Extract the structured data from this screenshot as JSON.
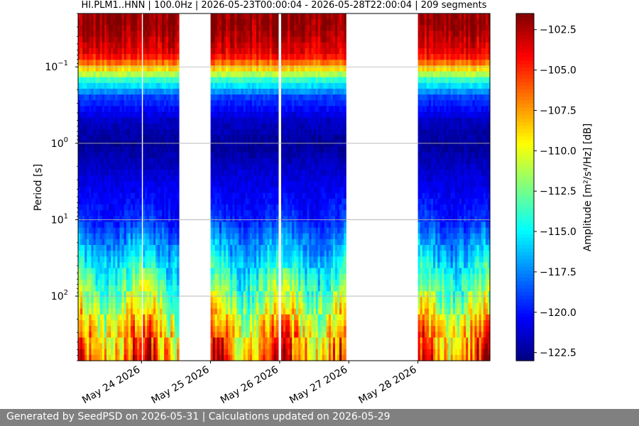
{
  "chart_data": {
    "type": "heatmap",
    "title": "HI.PLM1..HNN | 100.0Hz | 2026-05-23T00:00:04 - 2026-05-28T22:00:04 | 209 segments",
    "xlabel": "",
    "ylabel": "Period [s]",
    "colorbar_label": "Amplitude [m²/s⁴/Hz] [dB]",
    "colormap": "jet",
    "x_range": [
      "2026-05-23T02:00",
      "2026-05-29T01:00"
    ],
    "y_scale": "log",
    "y_range": [
      0.02,
      700
    ],
    "y_inverted": true,
    "grid": "horizontal",
    "clim": [
      -123,
      -101.5
    ],
    "x_ticks": [
      "May 24 2026",
      "May 25 2026",
      "May 26 2026",
      "May 27 2026",
      "May 28 2026"
    ],
    "y_ticks": [
      {
        "value": 0.1,
        "base": "10",
        "exp": "−1"
      },
      {
        "value": 1,
        "base": "10",
        "exp": "0"
      },
      {
        "value": 10,
        "base": "10",
        "exp": "1"
      },
      {
        "value": 100,
        "base": "10",
        "exp": "2"
      }
    ],
    "colorbar_ticks": [
      "−102.5",
      "−105.0",
      "−107.5",
      "−110.0",
      "−112.5",
      "−115.0",
      "−117.5",
      "−120.0",
      "−122.5"
    ],
    "colorbar_tick_values": [
      -102.5,
      -105.0,
      -107.5,
      -110.0,
      -112.5,
      -115.0,
      -117.5,
      -120.0,
      -122.5
    ],
    "data_segments": [
      {
        "start": "2026-05-23T02:00",
        "end": "2026-05-24T00:00"
      },
      {
        "start": "2026-05-24T00:30",
        "end": "2026-05-24T13:00"
      },
      {
        "start": "2026-05-25T00:00",
        "end": "2026-05-25T23:30"
      },
      {
        "start": "2026-05-26T00:30",
        "end": "2026-05-26T23:00"
      },
      {
        "start": "2026-05-28T00:00",
        "end": "2026-05-29T01:00"
      }
    ],
    "typical_profile": [
      {
        "period": 0.03,
        "db": -102
      },
      {
        "period": 0.07,
        "db": -104
      },
      {
        "period": 0.1,
        "db": -108
      },
      {
        "period": 0.15,
        "db": -114
      },
      {
        "period": 0.25,
        "db": -119
      },
      {
        "period": 0.5,
        "db": -121.5
      },
      {
        "period": 1,
        "db": -122.5
      },
      {
        "period": 3,
        "db": -121
      },
      {
        "period": 10,
        "db": -119.5
      },
      {
        "period": 30,
        "db": -116
      },
      {
        "period": 100,
        "db": -112
      },
      {
        "period": 300,
        "db": -108
      },
      {
        "period": 700,
        "db": -106
      }
    ]
  },
  "footer": {
    "text": "Generated by SeedPSD on 2026-05-31 | Calculations updated on 2026-05-29"
  }
}
